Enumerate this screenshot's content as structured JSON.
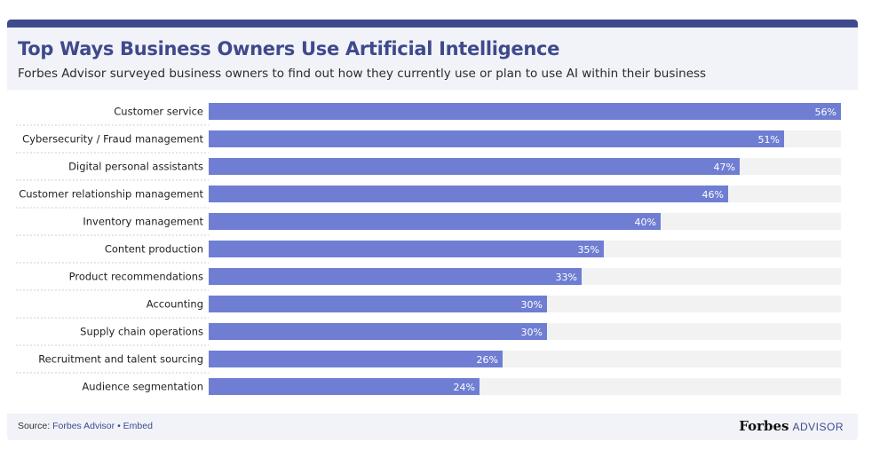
{
  "header": {
    "title": "Top Ways Business Owners Use Artificial Intelligence",
    "subtitle": "Forbes Advisor surveyed business owners to find out how they currently use or plan to use AI within their business"
  },
  "footer": {
    "source_label": "Source:",
    "source_link": "Forbes Advisor",
    "separator": "•",
    "embed_link": "Embed",
    "brand_name": "Forbes",
    "brand_suffix": "ADVISOR"
  },
  "colors": {
    "bar": "#6f7ed3",
    "track": "#f2f2f2",
    "title": "#3f4a8c"
  },
  "chart_data": {
    "type": "bar",
    "orientation": "horizontal",
    "categories": [
      "Customer service",
      "Cybersecurity / Fraud management",
      "Digital personal assistants",
      "Customer relationship management",
      "Inventory management",
      "Content production",
      "Product recommendations",
      "Accounting",
      "Supply chain operations",
      "Recruitment and talent sourcing",
      "Audience segmentation"
    ],
    "values": [
      56,
      51,
      47,
      46,
      40,
      35,
      33,
      30,
      30,
      26,
      24
    ],
    "value_labels": [
      "56%",
      "51%",
      "47%",
      "46%",
      "40%",
      "35%",
      "33%",
      "30%",
      "30%",
      "26%",
      "24%"
    ],
    "xlim": [
      0,
      56
    ],
    "grid": false,
    "legend": "none"
  }
}
